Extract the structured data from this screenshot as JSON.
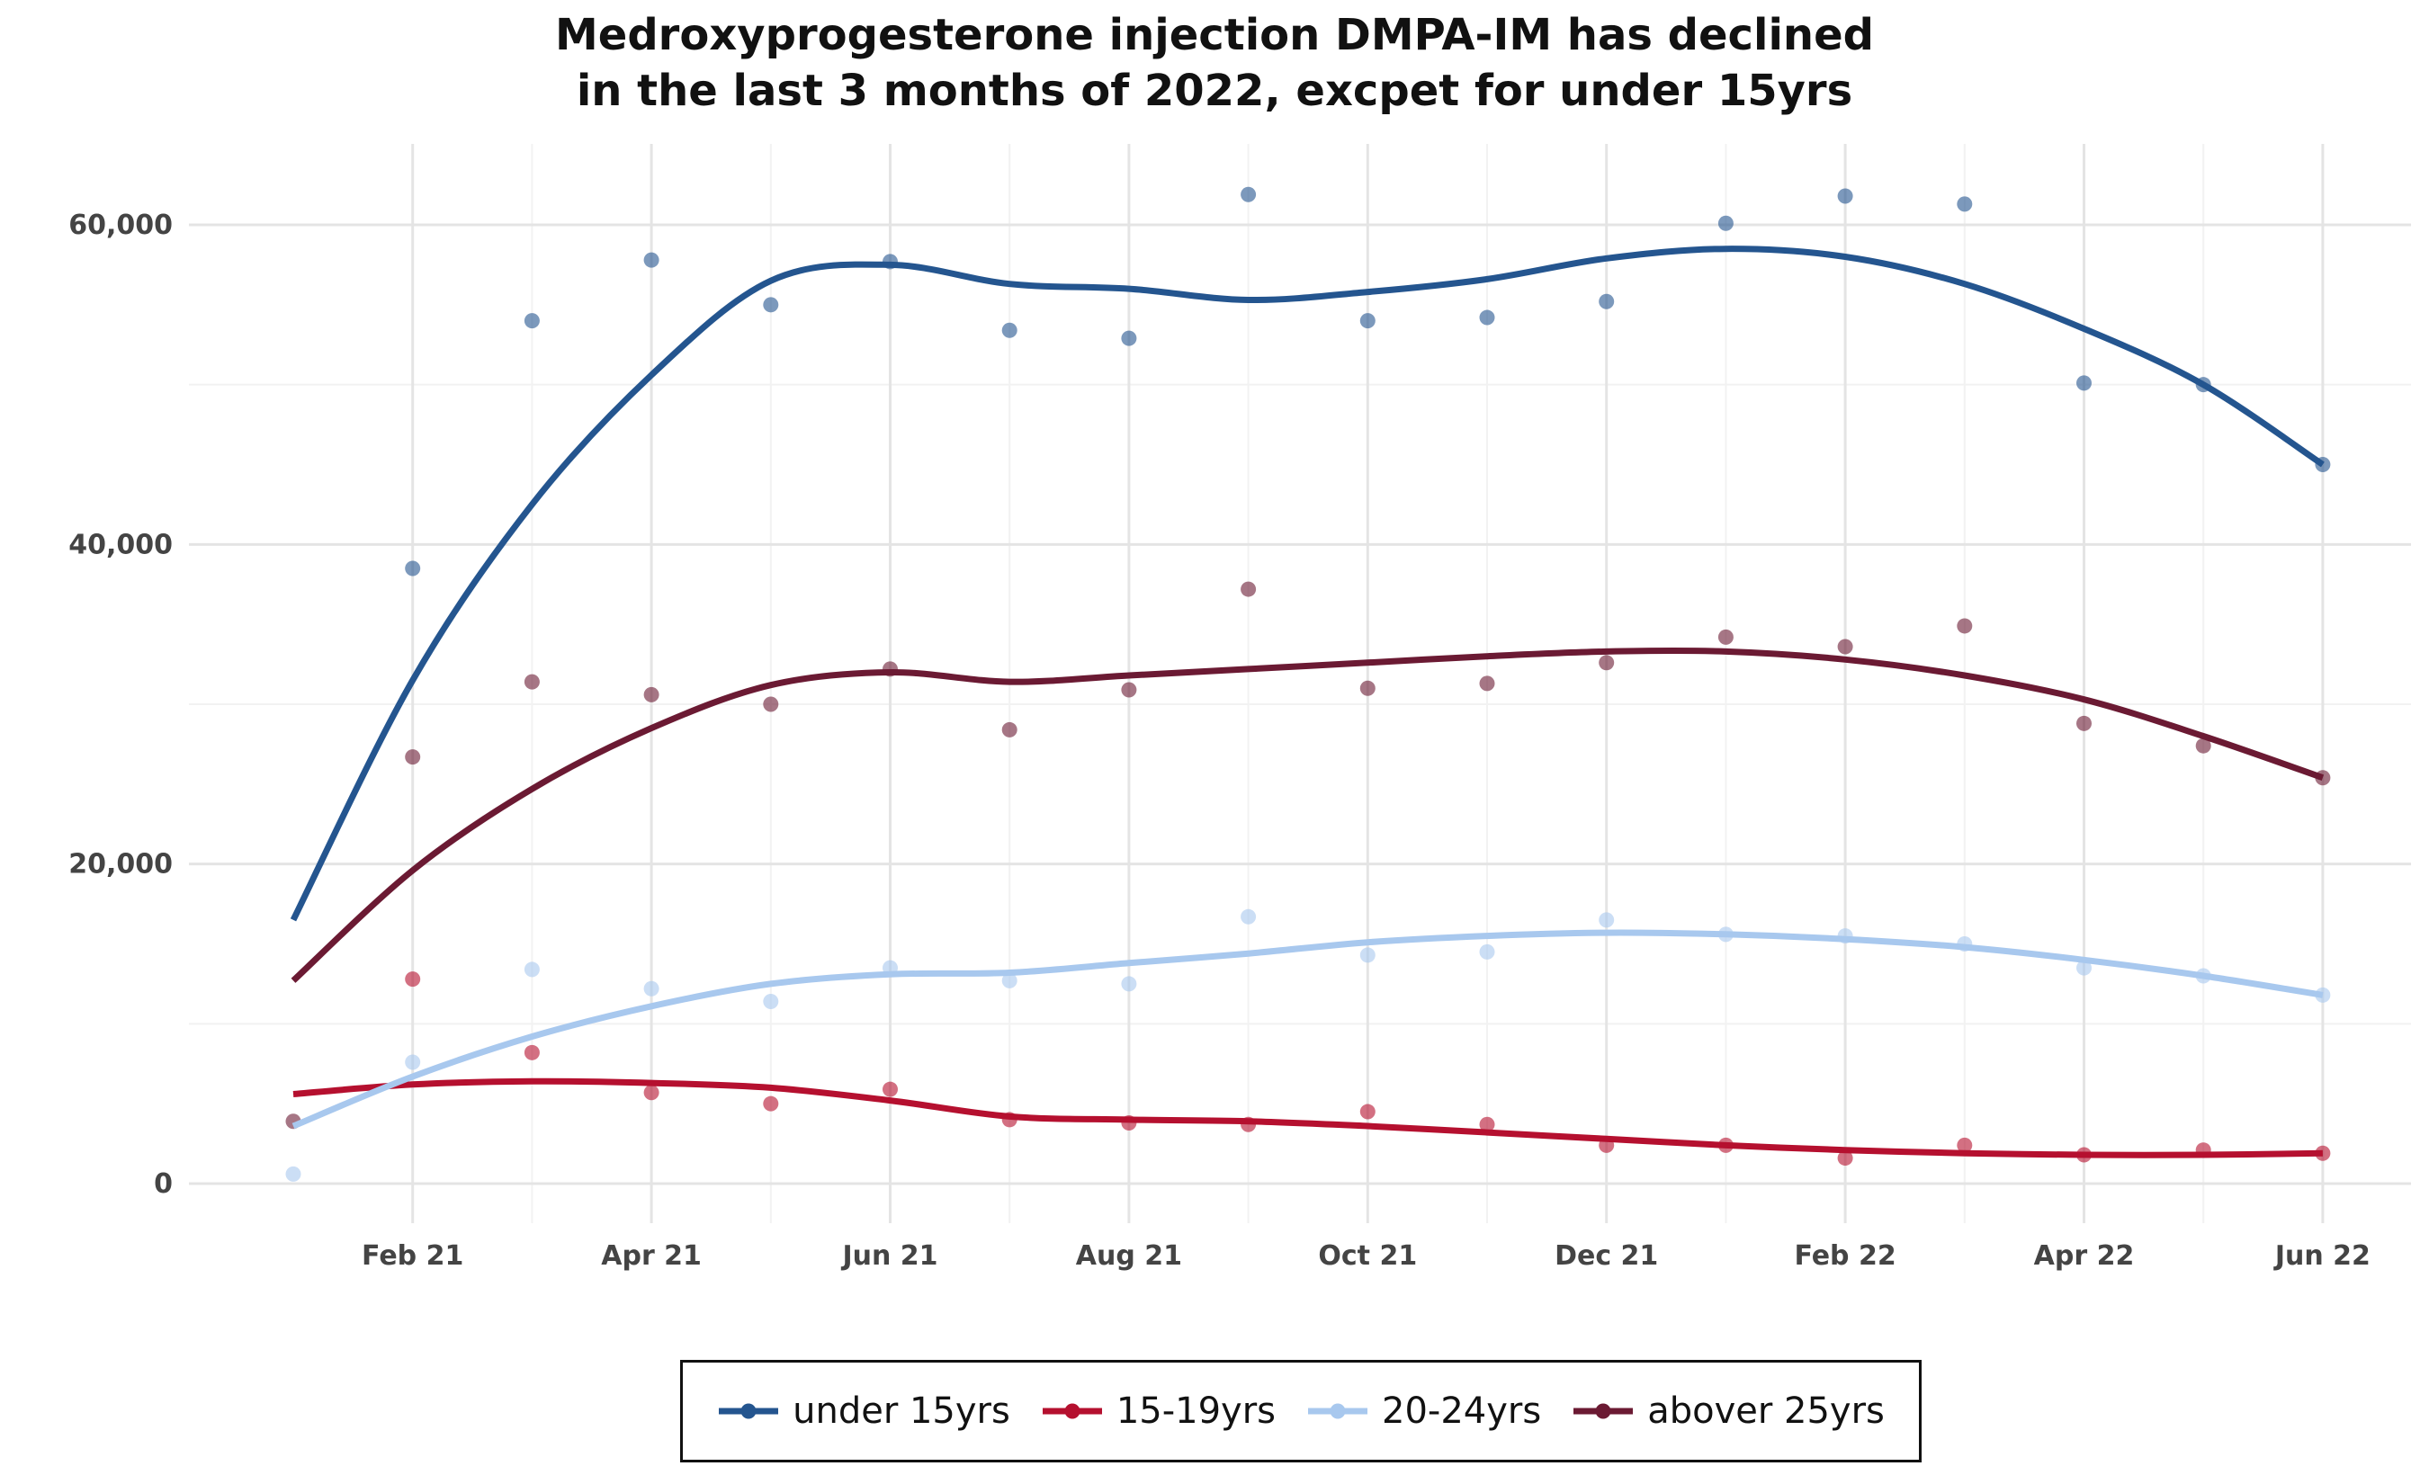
{
  "title_lines": [
    "Medroxyprogesterone injection DMPA-IM has declined",
    "in the last 3 months of 2022, excpet for under 15yrs"
  ],
  "chart_data": {
    "type": "scatter",
    "title": "Medroxyprogesterone injection DMPA-IM has declined in the last 3 months of 2022, excpet for under 15yrs",
    "xlabel": "",
    "ylabel": "",
    "x": [
      "2021-01",
      "2021-02",
      "2021-03",
      "2021-04",
      "2021-05",
      "2021-06",
      "2021-07",
      "2021-08",
      "2021-09",
      "2021-10",
      "2021-11",
      "2021-12",
      "2022-01",
      "2022-02",
      "2022-03",
      "2022-04",
      "2022-05",
      "2022-06"
    ],
    "x_ticks": [
      {
        "label": "Feb 21",
        "x": "2021-02"
      },
      {
        "label": "Apr 21",
        "x": "2021-04"
      },
      {
        "label": "Jun 21",
        "x": "2021-06"
      },
      {
        "label": "Aug 21",
        "x": "2021-08"
      },
      {
        "label": "Oct 21",
        "x": "2021-10"
      },
      {
        "label": "Dec 21",
        "x": "2021-12"
      },
      {
        "label": "Feb 22",
        "x": "2022-02"
      },
      {
        "label": "Apr 22",
        "x": "2022-04"
      },
      {
        "label": "Jun 22",
        "x": "2022-06"
      }
    ],
    "y_ticks": [
      {
        "label": "0",
        "value": 0
      },
      {
        "label": "20,000",
        "value": 20000
      },
      {
        "label": "40,000",
        "value": 40000
      },
      {
        "label": "60,000",
        "value": 60000
      }
    ],
    "ylim": [
      -2500,
      65000
    ],
    "grid": true,
    "legend": "bottom",
    "series": [
      {
        "name": "under 15yrs",
        "color": "#24558f",
        "values": [
          null,
          38500,
          54000,
          57800,
          55000,
          57700,
          53400,
          52900,
          61900,
          54000,
          54200,
          55200,
          60100,
          61800,
          61300,
          50100,
          50000,
          45000
        ],
        "smooth": [
          16500,
          31500,
          42500,
          50600,
          56500,
          57500,
          56300,
          56000,
          55300,
          55800,
          56600,
          57900,
          58500,
          58000,
          56300,
          53500,
          50000,
          45000
        ]
      },
      {
        "name": "15-19yrs",
        "color": "#b5102f",
        "values": [
          null,
          12800,
          8200,
          5700,
          5000,
          5900,
          4000,
          3800,
          3700,
          4500,
          3700,
          2400,
          2400,
          1600,
          2400,
          1800,
          2100,
          1900
        ],
        "smooth": [
          5600,
          6200,
          6400,
          6300,
          6000,
          5200,
          4200,
          4000,
          3900,
          3600,
          3200,
          2800,
          2400,
          2100,
          1900,
          1800,
          1800,
          1900
        ]
      },
      {
        "name": "20-24yrs",
        "color": "#a8c8ee",
        "values": [
          600,
          7600,
          13400,
          12200,
          11400,
          13500,
          12700,
          12500,
          16700,
          14300,
          14500,
          16500,
          15600,
          15500,
          15000,
          13500,
          13000,
          11800
        ],
        "smooth": [
          3600,
          6700,
          9200,
          11100,
          12500,
          13100,
          13200,
          13800,
          14400,
          15100,
          15500,
          15700,
          15600,
          15300,
          14800,
          14000,
          13000,
          11800
        ]
      },
      {
        "name": "abover 25yrs",
        "color": "#6b1a33",
        "values": [
          3900,
          26700,
          31400,
          30600,
          30000,
          32200,
          28400,
          30900,
          37200,
          31000,
          31300,
          32600,
          34200,
          33600,
          34900,
          28800,
          27400,
          25400
        ],
        "smooth": [
          12700,
          19600,
          24700,
          28500,
          31200,
          32000,
          31400,
          31800,
          32200,
          32600,
          33000,
          33300,
          33300,
          32800,
          31800,
          30300,
          28000,
          25400
        ]
      }
    ]
  }
}
